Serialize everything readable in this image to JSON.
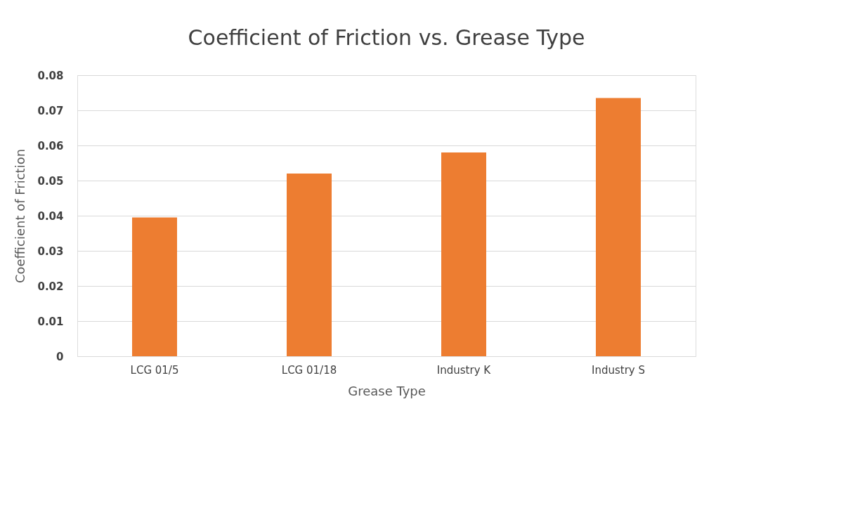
{
  "chart_data": {
    "type": "bar",
    "title": "Coefficient of Friction vs. Grease Type",
    "xlabel": "Grease Type",
    "ylabel": "Coefficient of Friction",
    "categories": [
      "LCG 01/5",
      "LCG 01/18",
      "Industry K",
      "Industry S"
    ],
    "values": [
      0.0395,
      0.052,
      0.058,
      0.0735
    ],
    "color": "#ed7d31",
    "ylim": [
      0,
      0.08
    ],
    "yticks": [
      0,
      0.01,
      0.02,
      0.03,
      0.04,
      0.05,
      0.06,
      0.07,
      0.08
    ],
    "grid": "y"
  }
}
